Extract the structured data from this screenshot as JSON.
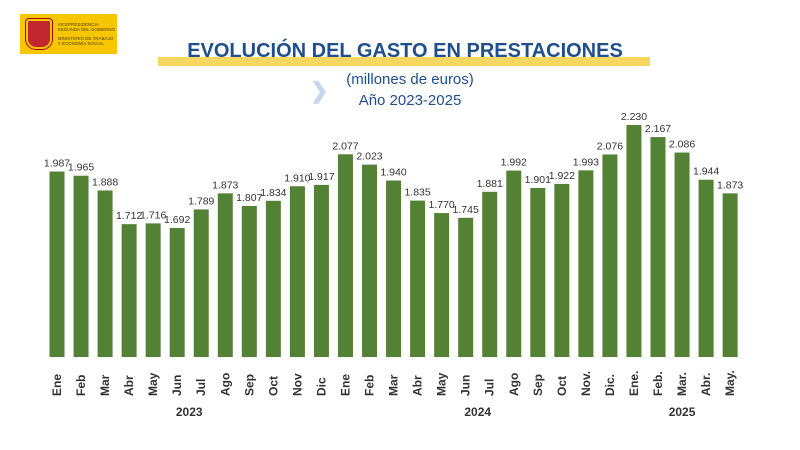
{
  "logo": {
    "line1": "VICEPRESIDENCIA SEGUNDA DEL GOBIERNO",
    "line2": "MINISTERIO DE TRABAJO Y ECONOMÍA SOCIAL"
  },
  "chart_data": {
    "type": "bar",
    "title": "EVOLUCIÓN DEL GASTO EN PRESTACIONES",
    "subtitle": "(millones  de euros)",
    "subtitle2": "Año 2023-2025",
    "categories": [
      "Ene",
      "Feb",
      "Mar",
      "Abr",
      "May",
      "Jun",
      "Jul",
      "Ago",
      "Sep",
      "Oct",
      "Nov",
      "Dic",
      "Ene",
      "Feb",
      "Mar",
      "Abr",
      "May",
      "Jun",
      "Jul",
      "Ago",
      "Sep",
      "Oct",
      "Nov.",
      "Dic.",
      "Ene.",
      "Feb.",
      "Mar.",
      "Abr.",
      "May."
    ],
    "labels": [
      "1.987",
      "1.965",
      "1.888",
      "1.712",
      "1.716",
      "1.692",
      "1.789",
      "1.873",
      "1.807",
      "1.834",
      "1.910",
      "1.917",
      "2.077",
      "2.023",
      "1.940",
      "1.835",
      "1.770",
      "1.745",
      "1.881",
      "1.992",
      "1.901",
      "1.922",
      "1.993",
      "2.076",
      "2.230",
      "2.167",
      "2.086",
      "1.944",
      "1.873"
    ],
    "values": [
      1987,
      1965,
      1888,
      1712,
      1716,
      1692,
      1789,
      1873,
      1807,
      1834,
      1910,
      1917,
      2077,
      2023,
      1940,
      1835,
      1770,
      1745,
      1881,
      1992,
      1901,
      1922,
      1993,
      2076,
      2230,
      2167,
      2086,
      1944,
      1873
    ],
    "groups": [
      {
        "label": "2023",
        "start": 0,
        "end": 11
      },
      {
        "label": "2024",
        "start": 12,
        "end": 23
      },
      {
        "label": "2025",
        "start": 24,
        "end": 28
      }
    ],
    "ylim": [
      1018,
      2300
    ],
    "bar_color": "#548235",
    "grid": false
  }
}
